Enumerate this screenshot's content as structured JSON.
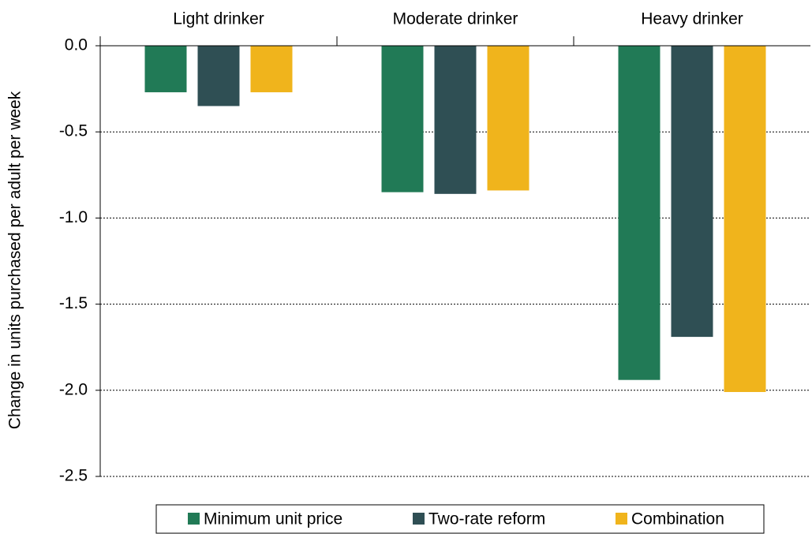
{
  "chart_data": {
    "type": "bar",
    "y_label": "Change in units purchased per adult per week",
    "categories": [
      "Light drinker",
      "Moderate drinker",
      "Heavy drinker"
    ],
    "series": [
      {
        "name": "Minimum unit price",
        "color": "#217a56",
        "values": [
          -0.27,
          -0.85,
          -1.94
        ]
      },
      {
        "name": "Two-rate reform",
        "color": "#2f4f54",
        "values": [
          -0.35,
          -0.86,
          -1.69
        ]
      },
      {
        "name": "Combination",
        "color": "#f0b41c",
        "values": [
          -0.27,
          -0.84,
          -2.01
        ]
      }
    ],
    "ylim": [
      0,
      -2.5
    ],
    "yticks": [
      {
        "value": 0,
        "label": "0.0"
      },
      -0.5,
      {
        "value": -1,
        "label": "-1.0"
      },
      -1.5,
      {
        "value": -2,
        "label": "-2.0"
      },
      -2.5
    ],
    "grid": true,
    "legend": "bottom"
  }
}
